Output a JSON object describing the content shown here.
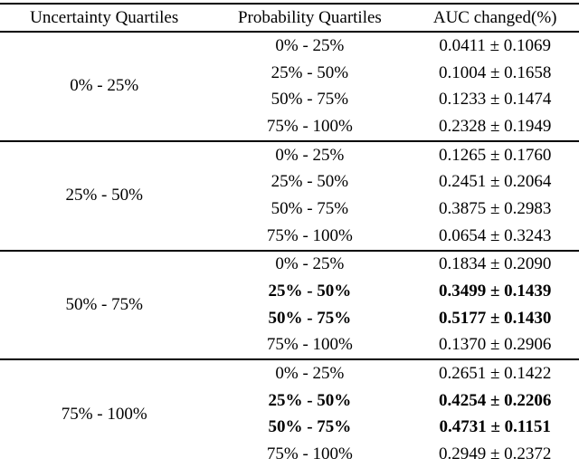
{
  "page": {
    "background_color": "#ffffff",
    "text_color": "#000000"
  },
  "table": {
    "columns": [
      {
        "label": "Uncertainty Quartiles"
      },
      {
        "label": "Probability Quartiles"
      },
      {
        "label": "AUC changed(%)"
      }
    ],
    "groups": [
      {
        "uncertainty_quartile": "0% - 25%",
        "rows": [
          {
            "probability_quartile": "0% - 25%",
            "auc_changed": "0.0411 ± 0.1069",
            "bold": false
          },
          {
            "probability_quartile": "25% - 50%",
            "auc_changed": "0.1004 ± 0.1658",
            "bold": false
          },
          {
            "probability_quartile": "50% - 75%",
            "auc_changed": "0.1233 ± 0.1474",
            "bold": false
          },
          {
            "probability_quartile": "75% - 100%",
            "auc_changed": "0.2328 ± 0.1949",
            "bold": false
          }
        ]
      },
      {
        "uncertainty_quartile": "25% - 50%",
        "rows": [
          {
            "probability_quartile": "0% - 25%",
            "auc_changed": "0.1265 ± 0.1760",
            "bold": false
          },
          {
            "probability_quartile": "25% - 50%",
            "auc_changed": "0.2451 ± 0.2064",
            "bold": false
          },
          {
            "probability_quartile": "50% - 75%",
            "auc_changed": "0.3875 ± 0.2983",
            "bold": false
          },
          {
            "probability_quartile": "75% - 100%",
            "auc_changed": "0.0654 ± 0.3243",
            "bold": false
          }
        ]
      },
      {
        "uncertainty_quartile": "50% - 75%",
        "rows": [
          {
            "probability_quartile": "0% - 25%",
            "auc_changed": "0.1834 ± 0.2090",
            "bold": false
          },
          {
            "probability_quartile": "25% - 50%",
            "auc_changed": "0.3499 ± 0.1439",
            "bold": true
          },
          {
            "probability_quartile": "50% - 75%",
            "auc_changed": "0.5177 ± 0.1430",
            "bold": true
          },
          {
            "probability_quartile": "75% - 100%",
            "auc_changed": "0.1370 ± 0.2906",
            "bold": false
          }
        ]
      },
      {
        "uncertainty_quartile": "75% - 100%",
        "rows": [
          {
            "probability_quartile": "0% - 25%",
            "auc_changed": "0.2651 ± 0.1422",
            "bold": false
          },
          {
            "probability_quartile": "25% - 50%",
            "auc_changed": "0.4254 ± 0.2206",
            "bold": true
          },
          {
            "probability_quartile": "50% - 75%",
            "auc_changed": "0.4731 ± 0.1151",
            "bold": true
          },
          {
            "probability_quartile": "75% - 100%",
            "auc_changed": "0.2949 ± 0.2372",
            "bold": false
          }
        ]
      }
    ]
  }
}
